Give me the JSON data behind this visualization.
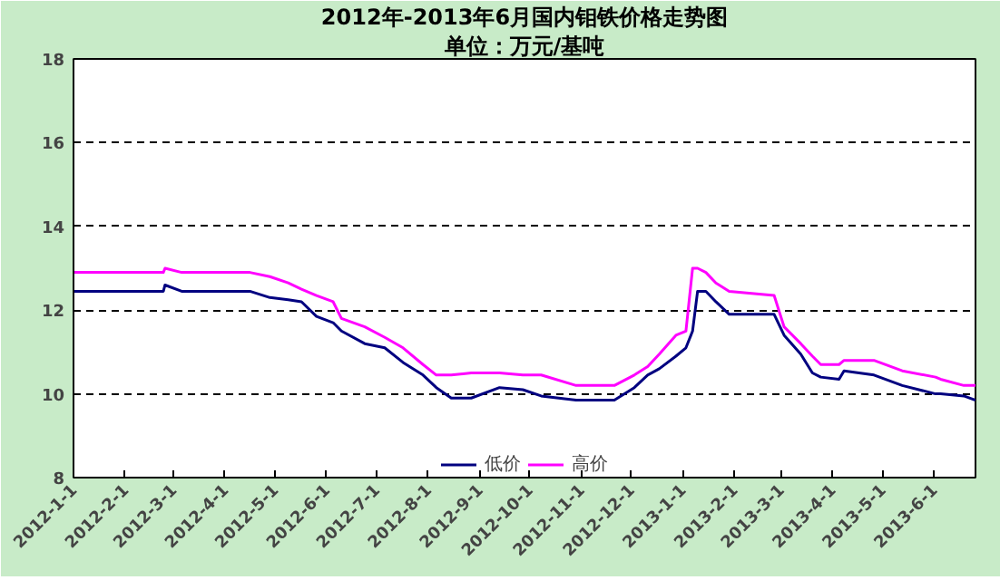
{
  "chart_data": {
    "type": "line",
    "title": "2012年-2013年6月国内钼铁价格走势图",
    "subtitle": "单位：万元/基吨",
    "x": [
      "2012-01-01",
      "2012-02-24",
      "2012-02-25",
      "2012-03-06",
      "2012-04-16",
      "2012-04-28",
      "2012-05-09",
      "2012-05-17",
      "2012-05-26",
      "2012-06-05",
      "2012-06-10",
      "2012-06-24",
      "2012-07-06",
      "2012-07-17",
      "2012-07-29",
      "2012-08-06",
      "2012-08-15",
      "2012-08-27",
      "2012-09-13",
      "2012-09-27",
      "2012-10-08",
      "2012-10-29",
      "2012-11-10",
      "2012-11-21",
      "2012-12-03",
      "2012-12-11",
      "2012-12-18",
      "2012-12-28",
      "2013-01-03",
      "2013-01-07",
      "2013-01-10",
      "2013-01-15",
      "2013-01-21",
      "2013-01-29",
      "2013-02-25",
      "2013-03-03",
      "2013-03-13",
      "2013-03-20",
      "2013-03-25",
      "2013-04-05",
      "2013-04-08",
      "2013-04-26",
      "2013-05-13",
      "2013-06-02",
      "2013-06-05",
      "2013-06-19",
      "2013-06-26"
    ],
    "series": [
      {
        "name": "低价",
        "color": "#000080",
        "values": [
          12.45,
          12.45,
          12.6,
          12.45,
          12.45,
          12.3,
          12.25,
          12.2,
          11.85,
          11.7,
          11.5,
          11.2,
          11.1,
          10.75,
          10.45,
          10.15,
          9.9,
          9.9,
          10.15,
          10.1,
          9.95,
          9.85,
          9.85,
          9.85,
          10.15,
          10.45,
          10.6,
          10.9,
          11.1,
          11.5,
          12.45,
          12.45,
          12.2,
          11.9,
          11.9,
          11.4,
          10.95,
          10.5,
          10.4,
          10.35,
          10.55,
          10.45,
          10.2,
          10.0,
          10.0,
          9.95,
          9.85
        ]
      },
      {
        "name": "高价",
        "color": "#ff00ff",
        "values": [
          12.9,
          12.9,
          13.0,
          12.9,
          12.9,
          12.8,
          12.65,
          12.5,
          12.35,
          12.2,
          11.8,
          11.6,
          11.35,
          11.1,
          10.7,
          10.45,
          10.45,
          10.5,
          10.5,
          10.45,
          10.45,
          10.2,
          10.2,
          10.2,
          10.45,
          10.65,
          10.95,
          11.4,
          11.5,
          13.0,
          13.0,
          12.9,
          12.65,
          12.45,
          12.35,
          11.6,
          11.2,
          10.9,
          10.7,
          10.7,
          10.8,
          10.8,
          10.55,
          10.4,
          10.35,
          10.2,
          10.2
        ]
      }
    ],
    "xlim": [
      "2012-01-01",
      "2013-06-26"
    ],
    "xticks": [
      {
        "value": "2012-01-01",
        "label": "2012-1-1"
      },
      {
        "value": "2012-02-01",
        "label": "2012-2-1"
      },
      {
        "value": "2012-03-01",
        "label": "2012-3-1"
      },
      {
        "value": "2012-04-01",
        "label": "2012-4-1"
      },
      {
        "value": "2012-05-01",
        "label": "2012-5-1"
      },
      {
        "value": "2012-06-01",
        "label": "2012-6-1"
      },
      {
        "value": "2012-07-01",
        "label": "2012-7-1"
      },
      {
        "value": "2012-08-01",
        "label": "2012-8-1"
      },
      {
        "value": "2012-09-01",
        "label": "2012-9-1"
      },
      {
        "value": "2012-10-01",
        "label": "2012-10-1"
      },
      {
        "value": "2012-11-01",
        "label": "2012-11-1"
      },
      {
        "value": "2012-12-01",
        "label": "2012-12-1"
      },
      {
        "value": "2013-01-01",
        "label": "2013-1-1"
      },
      {
        "value": "2013-02-01",
        "label": "2013-2-1"
      },
      {
        "value": "2013-03-01",
        "label": "2013-3-1"
      },
      {
        "value": "2013-04-01",
        "label": "2013-4-1"
      },
      {
        "value": "2013-05-01",
        "label": "2013-5-1"
      },
      {
        "value": "2013-06-01",
        "label": "2013-6-1"
      }
    ],
    "ylim": [
      8,
      18
    ],
    "yticks": [
      8,
      10,
      12,
      14,
      16,
      18
    ],
    "grid": "y",
    "legend": "bottom",
    "line_style": "solid"
  }
}
